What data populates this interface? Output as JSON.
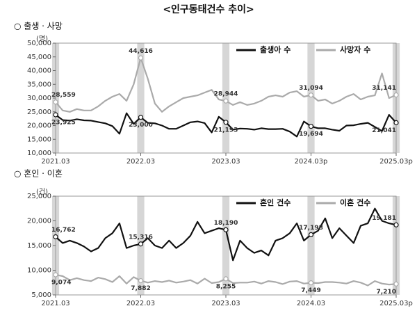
{
  "title": "<인구동태건수 추이>",
  "chart_data": [
    {
      "type": "line",
      "section": "○ 출생 · 사망",
      "unit": "(명)",
      "legend": "top-right",
      "categories": [
        "2021.03",
        null,
        null,
        null,
        null,
        null,
        null,
        null,
        null,
        null,
        null,
        null,
        "2022.03",
        null,
        null,
        null,
        null,
        null,
        null,
        null,
        null,
        null,
        null,
        null,
        "2023.03",
        null,
        null,
        null,
        null,
        null,
        null,
        null,
        null,
        null,
        null,
        null,
        "2024.03p",
        null,
        null,
        null,
        null,
        null,
        null,
        null,
        null,
        null,
        null,
        null,
        "2025.03p"
      ],
      "ylim": [
        10000,
        50000
      ],
      "yticks": [
        {
          "value": 10000,
          "label": "10,000"
        },
        {
          "value": 15000,
          "label": "15,000"
        },
        {
          "value": 20000,
          "label": "20,000"
        },
        {
          "value": 25000,
          "label": "25,000"
        },
        {
          "value": 30000,
          "label": "30,000"
        },
        {
          "value": 35000,
          "label": "35,000"
        },
        {
          "value": 40000,
          "label": "40,000"
        },
        {
          "value": 45000,
          "label": "45,000"
        },
        {
          "value": 50000,
          "label": "50,000"
        }
      ],
      "series": [
        {
          "name": "출생아 수",
          "color": "#111111",
          "values": [
            23925,
            22000,
            21800,
            22300,
            21900,
            21800,
            21300,
            20800,
            19800,
            17000,
            24500,
            20600,
            23000,
            21000,
            20800,
            20000,
            18800,
            18800,
            20000,
            21200,
            21500,
            20900,
            17500,
            23200,
            21193,
            18500,
            18900,
            18800,
            18500,
            19000,
            18700,
            18700,
            18800,
            17800,
            16000,
            21500,
            19694,
            19000,
            19000,
            18500,
            18100,
            20000,
            20100,
            20600,
            21000,
            19500,
            18000,
            23900,
            21041
          ],
          "value_labels": [
            "23,925",
            null,
            null,
            null,
            null,
            null,
            null,
            null,
            null,
            null,
            null,
            null,
            "23,000",
            null,
            null,
            null,
            null,
            null,
            null,
            null,
            null,
            null,
            null,
            null,
            "21,193",
            null,
            null,
            null,
            null,
            null,
            null,
            null,
            null,
            null,
            null,
            null,
            "19,694",
            null,
            null,
            null,
            null,
            null,
            null,
            null,
            null,
            null,
            null,
            null,
            "21,041"
          ]
        },
        {
          "name": "사망자 수",
          "color": "#aaaaaa",
          "values": [
            28559,
            25500,
            25000,
            26000,
            25500,
            25500,
            27000,
            29000,
            30500,
            31500,
            29000,
            35000,
            44616,
            37000,
            28000,
            25000,
            27000,
            28500,
            30000,
            30500,
            31000,
            32000,
            33000,
            29500,
            28944,
            27500,
            28500,
            27500,
            28000,
            29000,
            30500,
            31000,
            30500,
            32000,
            32500,
            30500,
            31094,
            29000,
            29500,
            28000,
            29000,
            30500,
            31500,
            29500,
            30500,
            31000,
            39000,
            30000,
            31141
          ],
          "value_labels": [
            "28,559",
            null,
            null,
            null,
            null,
            null,
            null,
            null,
            null,
            null,
            null,
            null,
            "44,616",
            null,
            null,
            null,
            null,
            null,
            null,
            null,
            null,
            null,
            null,
            null,
            "28,944",
            null,
            null,
            null,
            null,
            null,
            null,
            null,
            null,
            null,
            null,
            null,
            "31,094",
            null,
            null,
            null,
            null,
            null,
            null,
            null,
            null,
            null,
            null,
            null,
            "31,141"
          ]
        }
      ]
    },
    {
      "type": "line",
      "section": "○ 혼인 · 이혼",
      "unit": "(건)",
      "legend": "top-right",
      "categories": [
        "2021.03",
        null,
        null,
        null,
        null,
        null,
        null,
        null,
        null,
        null,
        null,
        null,
        "2022.03",
        null,
        null,
        null,
        null,
        null,
        null,
        null,
        null,
        null,
        null,
        null,
        "2023.03",
        null,
        null,
        null,
        null,
        null,
        null,
        null,
        null,
        null,
        null,
        null,
        "2024.03",
        null,
        null,
        null,
        null,
        null,
        null,
        null,
        null,
        null,
        null,
        null,
        "2025.03p"
      ],
      "ylim": [
        5000,
        25000
      ],
      "yticks": [
        {
          "value": 5000,
          "label": "5,000"
        },
        {
          "value": 10000,
          "label": "10,000"
        },
        {
          "value": 15000,
          "label": "15,000"
        },
        {
          "value": 20000,
          "label": "20,000"
        },
        {
          "value": 25000,
          "label": "25,000"
        }
      ],
      "series": [
        {
          "name": "혼인 건수",
          "color": "#111111",
          "values": [
            16762,
            15500,
            16000,
            15500,
            14800,
            13800,
            14500,
            16500,
            17500,
            19500,
            14500,
            15000,
            15316,
            16500,
            15000,
            14500,
            16000,
            14500,
            15500,
            17000,
            19800,
            17500,
            18000,
            18500,
            18190,
            12000,
            16000,
            14500,
            13500,
            14000,
            13000,
            16000,
            16500,
            17500,
            19500,
            16000,
            17198,
            18000,
            20500,
            16500,
            18500,
            17000,
            15500,
            19000,
            19500,
            22500,
            20000,
            19500,
            19181
          ],
          "value_labels": [
            "16,762",
            null,
            null,
            null,
            null,
            null,
            null,
            null,
            null,
            null,
            null,
            null,
            "15,316",
            null,
            null,
            null,
            null,
            null,
            null,
            null,
            null,
            null,
            null,
            null,
            "18,190",
            null,
            null,
            null,
            null,
            null,
            null,
            null,
            null,
            null,
            null,
            null,
            "17,198",
            null,
            null,
            null,
            null,
            null,
            null,
            null,
            null,
            null,
            null,
            null,
            "19,181"
          ]
        },
        {
          "name": "이혼 건수",
          "color": "#aaaaaa",
          "values": [
            9074,
            8800,
            8000,
            8400,
            8000,
            7800,
            8500,
            8200,
            7600,
            8800,
            7300,
            8600,
            7882,
            7500,
            7800,
            7600,
            7900,
            7500,
            7700,
            8000,
            7300,
            8300,
            7400,
            7600,
            8255,
            7400,
            7500,
            7500,
            7700,
            7300,
            7800,
            7600,
            7200,
            7700,
            7800,
            7300,
            7449,
            7400,
            7600,
            7600,
            7500,
            7300,
            7800,
            7500,
            6900,
            7800,
            7300,
            7100,
            7210
          ],
          "value_labels": [
            "9,074",
            null,
            null,
            null,
            null,
            null,
            null,
            null,
            null,
            null,
            null,
            null,
            "7,882",
            null,
            null,
            null,
            null,
            null,
            null,
            null,
            null,
            null,
            null,
            null,
            "8,255",
            null,
            null,
            null,
            null,
            null,
            null,
            null,
            null,
            null,
            null,
            null,
            "7,449",
            null,
            null,
            null,
            null,
            null,
            null,
            null,
            null,
            null,
            null,
            null,
            "7,210"
          ]
        }
      ]
    }
  ]
}
